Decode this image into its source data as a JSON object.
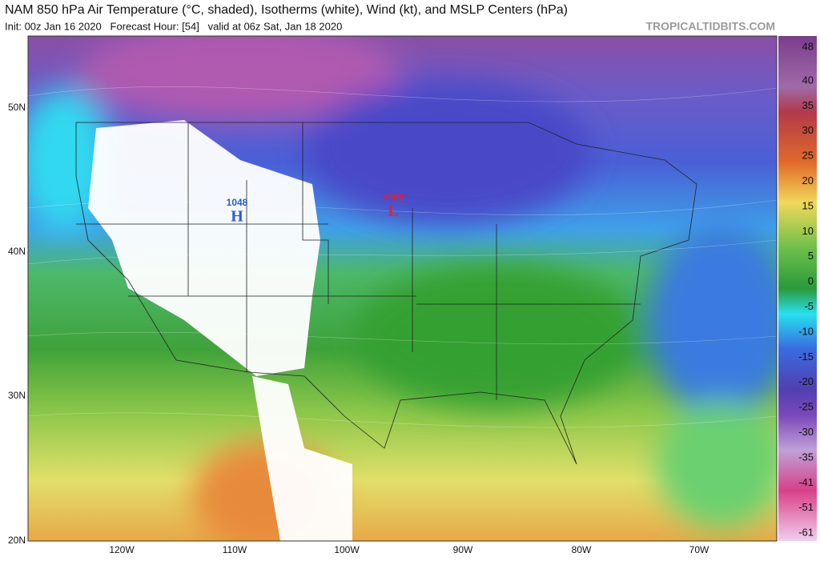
{
  "header": {
    "title": "NAM 850 hPa Air Temperature (°C, shaded), Isotherms (white), Wind (kt), and MSLP Centers (hPa)",
    "subtitle": "Init: 00z Jan 16 2020   Forecast Hour: [54]   valid at 06z Sat, Jan 18 2020",
    "credit": "TROPICALTIDBITS.COM"
  },
  "map": {
    "lat_labels": [
      "50N",
      "40N",
      "30N",
      "20N"
    ],
    "lon_labels": [
      "120W",
      "110W",
      "100W",
      "90W",
      "80W",
      "70W"
    ],
    "centers": [
      {
        "value": "1048",
        "symbol": "H"
      },
      {
        "value": "1009",
        "symbol": "L"
      }
    ]
  },
  "colorbar": {
    "ticks": [
      48,
      40,
      35,
      30,
      25,
      20,
      15,
      10,
      5,
      0,
      -5,
      -10,
      -15,
      -20,
      -25,
      -30,
      -35,
      -41,
      -51,
      -61
    ]
  }
}
